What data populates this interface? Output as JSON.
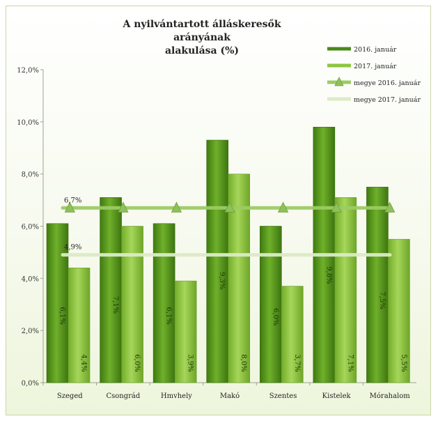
{
  "chart_data": {
    "type": "bar",
    "title_line1": "A nyilvántartott álláskeresők arányának",
    "title_line2": "alakulása (%)",
    "categories": [
      "Szeged",
      "Csongrád",
      "Hmvhely",
      "Makó",
      "Szentes",
      "Kistelek",
      "Mórahalom"
    ],
    "series": [
      {
        "name": "2016. január",
        "values": [
          6.1,
          7.1,
          6.1,
          9.3,
          6.0,
          9.8,
          7.5
        ],
        "color": "#5a9a1e",
        "labels": [
          "6,1%",
          "7,1%",
          "6,1%",
          "9,3%",
          "6,0%",
          "9,8%",
          "7,5%"
        ]
      },
      {
        "name": "2017. január",
        "values": [
          4.4,
          6.0,
          3.9,
          8.0,
          3.7,
          7.1,
          5.5
        ],
        "color": "#8cc63f",
        "labels": [
          "4,4%",
          "6,0%",
          "3,9%",
          "8,0%",
          "3,7%",
          "7,1%",
          "5,5%"
        ]
      }
    ],
    "lines": [
      {
        "name": "megye 2016. január",
        "value": 6.7,
        "label": "6,7%",
        "color": "#9ccc64",
        "marker": "triangle"
      },
      {
        "name": "megye 2017. január",
        "value": 4.9,
        "label": "4,9%",
        "color": "#dcebc8",
        "marker": "none"
      }
    ],
    "ylim": [
      0,
      12
    ],
    "yticks": [
      "0,0%",
      "2,0%",
      "4,0%",
      "6,0%",
      "8,0%",
      "10,0%",
      "12,0%"
    ],
    "legend_position": "top-right",
    "grid": false
  }
}
